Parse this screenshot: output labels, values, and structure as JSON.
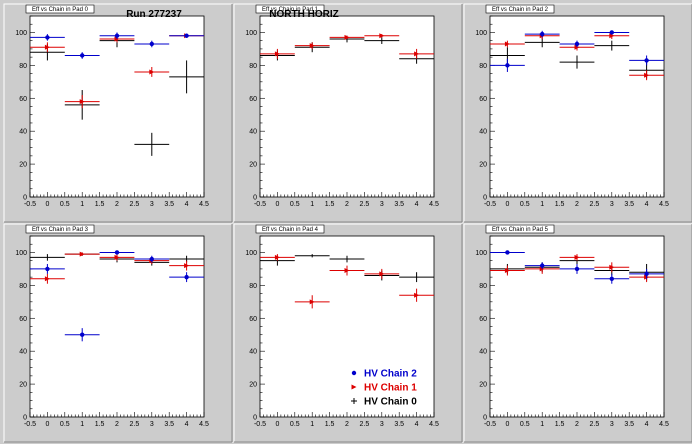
{
  "colors": {
    "chain2": "#0000cc",
    "chain1": "#dd0000",
    "chain0": "#000000",
    "pad_bg": "#ffffff",
    "canvas_bg": "#cccccc"
  },
  "legend": [
    {
      "label": "HV Chain 2",
      "color": "#0000cc",
      "marker": "circle"
    },
    {
      "label": "HV Chain 1",
      "color": "#dd0000",
      "marker": "arrow"
    },
    {
      "label": "HV Chain 0",
      "color": "#000000",
      "marker": "cross"
    }
  ],
  "chart_data": [
    {
      "type": "scatter",
      "pad_title": "Eff vs Chain in Pad 0",
      "annotation": "Run 277237",
      "xlim": [
        -0.5,
        4.5
      ],
      "ylim": [
        0,
        110
      ],
      "xticks": [
        "-0.5",
        "0",
        "0.5",
        "1",
        "1.5",
        "2",
        "2.5",
        "3",
        "3.5",
        "4",
        "4.5"
      ],
      "yticks": [
        "0",
        "20",
        "40",
        "60",
        "80",
        "100"
      ],
      "series": [
        {
          "name": "HV Chain 2",
          "x": [
            0,
            1,
            2,
            3,
            4
          ],
          "y": [
            97,
            86,
            98,
            93,
            98
          ],
          "yerr": [
            2,
            2,
            2,
            2,
            1
          ]
        },
        {
          "name": "HV Chain 1",
          "x": [
            0,
            1,
            2,
            3,
            4
          ],
          "y": [
            91,
            58,
            96,
            76,
            98
          ],
          "yerr": [
            3,
            4,
            2,
            3,
            1
          ]
        },
        {
          "name": "HV Chain 0",
          "x": [
            0,
            1,
            2,
            3,
            4
          ],
          "y": [
            88,
            56,
            95,
            32,
            73
          ],
          "yerr": [
            5,
            9,
            4,
            7,
            10
          ]
        }
      ]
    },
    {
      "type": "scatter",
      "pad_title": "Eff vs Chain in Pad 1",
      "annotation": "NORTH HORIZ",
      "xlim": [
        -0.5,
        4.5
      ],
      "ylim": [
        0,
        110
      ],
      "xticks": [
        "-0.5",
        "0",
        "0.5",
        "1",
        "1.5",
        "2",
        "2.5",
        "3",
        "3.5",
        "4",
        "4.5"
      ],
      "yticks": [
        "0",
        "20",
        "40",
        "60",
        "80",
        "100"
      ],
      "series": [
        {
          "name": "HV Chain 2",
          "x": [],
          "y": [],
          "yerr": []
        },
        {
          "name": "HV Chain 1",
          "x": [
            0,
            1,
            2,
            3,
            4
          ],
          "y": [
            87,
            92,
            97,
            98,
            87
          ],
          "yerr": [
            3,
            2,
            1,
            1,
            3
          ]
        },
        {
          "name": "HV Chain 0",
          "x": [
            0,
            1,
            2,
            3,
            4
          ],
          "y": [
            86,
            91,
            96,
            95,
            84
          ],
          "yerr": [
            3,
            3,
            2,
            2,
            3
          ]
        }
      ]
    },
    {
      "type": "scatter",
      "pad_title": "Eff vs Chain in Pad 2",
      "annotation": "",
      "xlim": [
        -0.5,
        4.5
      ],
      "ylim": [
        0,
        110
      ],
      "xticks": [
        "-0.5",
        "0",
        "0.5",
        "1",
        "1.5",
        "2",
        "2.5",
        "3",
        "3.5",
        "4",
        "4.5"
      ],
      "yticks": [
        "0",
        "20",
        "40",
        "60",
        "80",
        "100"
      ],
      "series": [
        {
          "name": "HV Chain 2",
          "x": [
            0,
            1,
            2,
            3,
            4
          ],
          "y": [
            80,
            99,
            93,
            100,
            83
          ],
          "yerr": [
            4,
            2,
            2,
            1,
            3
          ]
        },
        {
          "name": "HV Chain 1",
          "x": [
            0,
            1,
            2,
            3,
            4
          ],
          "y": [
            93,
            98,
            91,
            98,
            74
          ],
          "yerr": [
            2,
            2,
            2,
            2,
            3
          ]
        },
        {
          "name": "HV Chain 0",
          "x": [
            0,
            1,
            2,
            3,
            4
          ],
          "y": [
            86,
            94,
            82,
            92,
            77
          ],
          "yerr": [
            5,
            3,
            4,
            3,
            5
          ]
        }
      ]
    },
    {
      "type": "scatter",
      "pad_title": "Eff vs Chain in Pad 3",
      "annotation": "",
      "xlim": [
        -0.5,
        4.5
      ],
      "ylim": [
        0,
        110
      ],
      "xticks": [
        "-0.5",
        "0",
        "0.5",
        "1",
        "1.5",
        "2",
        "2.5",
        "3",
        "3.5",
        "4",
        "4.5"
      ],
      "yticks": [
        "0",
        "20",
        "40",
        "60",
        "80",
        "100"
      ],
      "series": [
        {
          "name": "HV Chain 2",
          "x": [
            0,
            1,
            2,
            3,
            4
          ],
          "y": [
            90,
            50,
            100,
            96,
            85
          ],
          "yerr": [
            3,
            4,
            1,
            2,
            3
          ]
        },
        {
          "name": "HV Chain 1",
          "x": [
            0,
            1,
            2,
            3,
            4
          ],
          "y": [
            84,
            99,
            97,
            95,
            92
          ],
          "yerr": [
            3,
            1,
            2,
            2,
            3
          ]
        },
        {
          "name": "HV Chain 0",
          "x": [
            0,
            1,
            2,
            3,
            4
          ],
          "y": [
            97,
            99,
            96,
            94,
            96
          ],
          "yerr": [
            2,
            1,
            2,
            2,
            2
          ]
        }
      ]
    },
    {
      "type": "scatter",
      "pad_title": "Eff vs Chain in Pad 4",
      "annotation": "",
      "xlim": [
        -0.5,
        4.5
      ],
      "ylim": [
        0,
        110
      ],
      "xticks": [
        "-0.5",
        "0",
        "0.5",
        "1",
        "1.5",
        "2",
        "2.5",
        "3",
        "3.5",
        "4",
        "4.5"
      ],
      "yticks": [
        "0",
        "20",
        "40",
        "60",
        "80",
        "100"
      ],
      "series": [
        {
          "name": "HV Chain 2",
          "x": [],
          "y": [],
          "yerr": []
        },
        {
          "name": "HV Chain 1",
          "x": [
            0,
            1,
            2,
            3,
            4
          ],
          "y": [
            97,
            70,
            89,
            87,
            74
          ],
          "yerr": [
            2,
            4,
            3,
            3,
            4
          ]
        },
        {
          "name": "HV Chain 0",
          "x": [
            0,
            1,
            2,
            3,
            4
          ],
          "y": [
            95,
            98,
            96,
            86,
            85
          ],
          "yerr": [
            3,
            1,
            2,
            3,
            3
          ]
        }
      ]
    },
    {
      "type": "scatter",
      "pad_title": "Eff vs Chain in Pad 5",
      "annotation": "",
      "xlim": [
        -0.5,
        4.5
      ],
      "ylim": [
        0,
        110
      ],
      "xticks": [
        "-0.5",
        "0",
        "0.5",
        "1",
        "1.5",
        "2",
        "2.5",
        "3",
        "3.5",
        "4",
        "4.5"
      ],
      "yticks": [
        "0",
        "20",
        "40",
        "60",
        "80",
        "100"
      ],
      "series": [
        {
          "name": "HV Chain 2",
          "x": [
            0,
            1,
            2,
            3,
            4
          ],
          "y": [
            100,
            92,
            90,
            84,
            87
          ],
          "yerr": [
            1,
            2,
            3,
            3,
            3
          ]
        },
        {
          "name": "HV Chain 1",
          "x": [
            0,
            1,
            2,
            3,
            4
          ],
          "y": [
            89,
            90,
            97,
            91,
            85
          ],
          "yerr": [
            3,
            3,
            2,
            3,
            3
          ]
        },
        {
          "name": "HV Chain 0",
          "x": [
            0,
            1,
            2,
            3,
            4
          ],
          "y": [
            90,
            91,
            95,
            89,
            88
          ],
          "yerr": [
            3,
            3,
            2,
            3,
            5
          ]
        }
      ]
    }
  ]
}
